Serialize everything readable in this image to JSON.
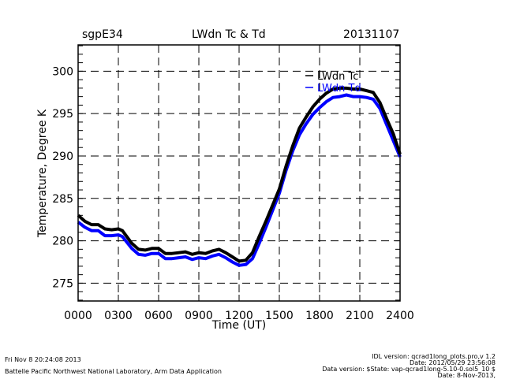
{
  "header": {
    "site": "sgpE34",
    "title": "LWdn Tc & Td",
    "date": "20131107"
  },
  "footer": {
    "timestamp": "Fri Nov  8 20:24:08 2013",
    "org": "Battelle Pacific Northwest National Laboratory, Arm Data Application",
    "idl_version": "IDL version: qcrad1long_plots.pro,v 1.2",
    "idl_date": "Date: 2012/05/29 23:56:08",
    "data_version": "Data version: $State: vap-qcrad1long-5.10-0.sol5_10 $",
    "data_date": "Date: 8-Nov-2013,"
  },
  "chart_data": {
    "type": "line",
    "title": "LWdn Tc & Td",
    "xlabel": "Time (UT)",
    "ylabel": "Temperature, Degree K",
    "xlim": [
      0,
      24
    ],
    "ylim": [
      272.9,
      303.1
    ],
    "x_ticks": [
      0,
      3,
      6,
      9,
      12,
      15,
      18,
      21,
      24
    ],
    "x_tick_labels": [
      "0000",
      "0300",
      "0600",
      "0900",
      "1200",
      "1500",
      "1800",
      "2100",
      "2400"
    ],
    "y_ticks": [
      275,
      280,
      285,
      290,
      295,
      300
    ],
    "y_tick_labels": [
      "275",
      "280",
      "285",
      "290",
      "295",
      "300"
    ],
    "grid": true,
    "legend_position": "top-right",
    "x": [
      0,
      0.5,
      1,
      1.5,
      2,
      2.5,
      3,
      3.3,
      4,
      4.5,
      5,
      5.5,
      6,
      6.5,
      7,
      7.5,
      8,
      8.5,
      9,
      9.5,
      10,
      10.5,
      11,
      11.5,
      12,
      12.5,
      13,
      13.5,
      14,
      14.5,
      15,
      15.5,
      16,
      16.5,
      17,
      17.5,
      18,
      18.5,
      19,
      19.5,
      20,
      20.5,
      21,
      21.5,
      22,
      22.5,
      23,
      23.5,
      24
    ],
    "series": [
      {
        "name": "LWdn Tc",
        "color": "#000000",
        "values": [
          283.0,
          282.3,
          281.9,
          281.9,
          281.4,
          281.3,
          281.4,
          281.2,
          279.7,
          279.0,
          278.9,
          279.1,
          279.1,
          278.5,
          278.5,
          278.6,
          278.7,
          278.4,
          278.6,
          278.5,
          278.8,
          279.0,
          278.6,
          278.1,
          277.6,
          277.7,
          278.6,
          280.5,
          282.3,
          284.2,
          286.1,
          288.8,
          291.2,
          293.3,
          294.6,
          295.8,
          296.7,
          297.4,
          297.9,
          298.0,
          298.0,
          297.9,
          297.9,
          297.7,
          297.5,
          296.3,
          294.4,
          292.6,
          290.2
        ]
      },
      {
        "name": "LWdn Td",
        "color": "#0000ff",
        "values": [
          282.2,
          281.6,
          281.2,
          281.2,
          280.6,
          280.6,
          280.7,
          280.5,
          279.1,
          278.4,
          278.3,
          278.5,
          278.5,
          277.9,
          277.9,
          278.0,
          278.1,
          277.8,
          278.0,
          277.9,
          278.2,
          278.4,
          278.0,
          277.5,
          277.1,
          277.2,
          277.9,
          279.7,
          281.6,
          283.6,
          285.6,
          288.3,
          290.6,
          292.5,
          293.8,
          294.9,
          295.7,
          296.4,
          296.9,
          297.0,
          297.2,
          297.0,
          297.0,
          296.9,
          296.7,
          295.6,
          293.7,
          291.8,
          289.9
        ]
      }
    ]
  }
}
